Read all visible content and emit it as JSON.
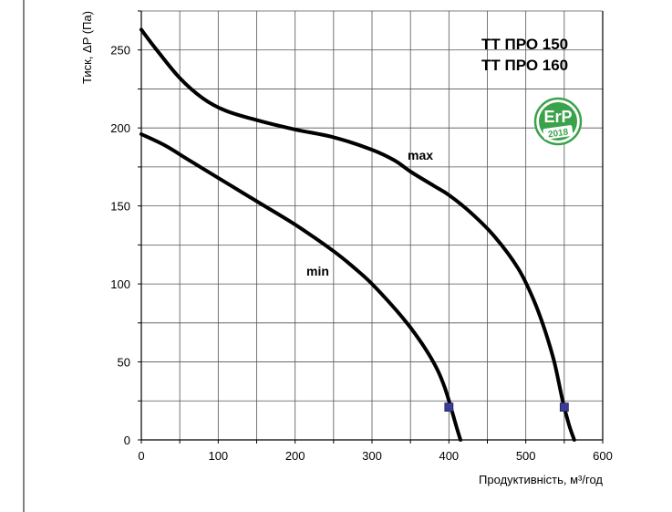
{
  "chart_data": {
    "type": "line",
    "title_lines": [
      "ТТ ПРО 150",
      "ТТ ПРО 160"
    ],
    "xlabel": "Продуктивність, м³/год",
    "ylabel": "Тиск, ΔP (Па)",
    "xlim": [
      0,
      600
    ],
    "ylim": [
      0,
      275
    ],
    "xticks": [
      0,
      100,
      200,
      300,
      400,
      500,
      600
    ],
    "yticks": [
      0,
      50,
      100,
      150,
      200,
      250
    ],
    "x_minor_step": 50,
    "y_minor_step": 25,
    "grid": true,
    "series": [
      {
        "name": "max",
        "color": "#000000",
        "points": [
          [
            0,
            263
          ],
          [
            20,
            250
          ],
          [
            50,
            232
          ],
          [
            80,
            219
          ],
          [
            110,
            211
          ],
          [
            150,
            205
          ],
          [
            200,
            199
          ],
          [
            250,
            194
          ],
          [
            300,
            186
          ],
          [
            330,
            179
          ],
          [
            350,
            172
          ],
          [
            380,
            163
          ],
          [
            400,
            157
          ],
          [
            430,
            145
          ],
          [
            460,
            130
          ],
          [
            490,
            110
          ],
          [
            510,
            90
          ],
          [
            525,
            70
          ],
          [
            537,
            50
          ],
          [
            548,
            25
          ],
          [
            556,
            10
          ],
          [
            563,
            0
          ]
        ],
        "marker": [
          550,
          21
        ]
      },
      {
        "name": "min",
        "color": "#000000",
        "points": [
          [
            0,
            196
          ],
          [
            30,
            189
          ],
          [
            60,
            180
          ],
          [
            100,
            168
          ],
          [
            150,
            153
          ],
          [
            200,
            138
          ],
          [
            250,
            121
          ],
          [
            280,
            109
          ],
          [
            300,
            100
          ],
          [
            330,
            84
          ],
          [
            350,
            72
          ],
          [
            370,
            58
          ],
          [
            385,
            45
          ],
          [
            395,
            33
          ],
          [
            403,
            20
          ],
          [
            410,
            8
          ],
          [
            415,
            0
          ]
        ],
        "marker": [
          400,
          21
        ]
      }
    ],
    "marker_color": "#3b3b9a"
  },
  "badge": {
    "text_top": "ErP",
    "text_bottom": "2018",
    "color": "#3aa24a"
  }
}
